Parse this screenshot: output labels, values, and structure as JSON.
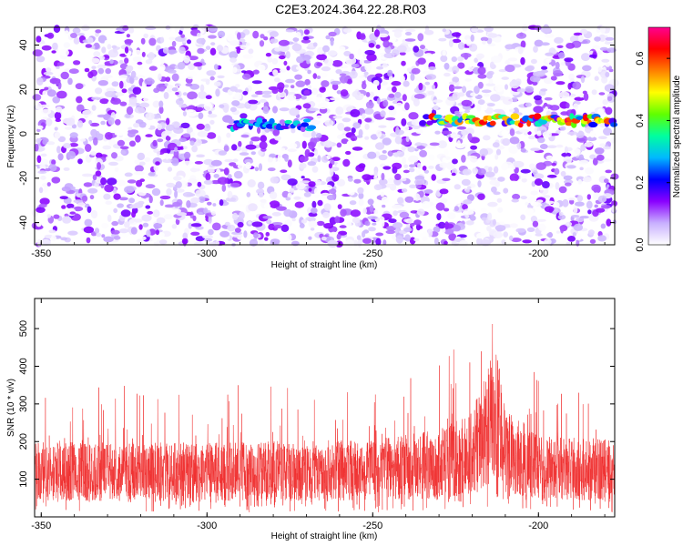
{
  "title": "C2E3.2024.364.22.28.R03",
  "chart_data": [
    {
      "type": "heatmap",
      "xlabel": "Height of straight line (km)",
      "ylabel": "Frequency (Hz)",
      "xlim": [
        -352,
        -177
      ],
      "ylim": [
        -50,
        48
      ],
      "x_ticks": [
        -350,
        -300,
        -250,
        -200
      ],
      "y_ticks": [
        -40,
        -20,
        0,
        20,
        40
      ],
      "colorbar": {
        "label": "Normalized spectral amplitude",
        "range": [
          0.0,
          0.7
        ],
        "ticks": [
          0.0,
          0.2,
          0.4,
          0.6
        ],
        "tick_labels": [
          "0.0",
          "0.2",
          "0.4",
          "0.6"
        ],
        "colors": [
          "#ffffff",
          "#c8b0ff",
          "#8a00ff",
          "#0000ff",
          "#00b8ff",
          "#00ffa0",
          "#60ff00",
          "#ffff00",
          "#ff8000",
          "#ff0000",
          "#ff0090"
        ]
      },
      "features": [
        {
          "x_start": -293,
          "x_end": -268,
          "frequency": 4,
          "peak_amplitude": 0.35
        },
        {
          "x_start": -235,
          "x_end": -177,
          "frequency": 6,
          "peak_amplitude": 0.68
        }
      ]
    },
    {
      "type": "line",
      "xlabel": "Height of straight line (km)",
      "ylabel": "SNR (10 * v/v)",
      "xlim": [
        -352,
        -177
      ],
      "ylim": [
        0,
        580
      ],
      "x_ticks": [
        -350,
        -300,
        -250,
        -200
      ],
      "y_ticks": [
        100,
        200,
        300,
        400,
        500
      ],
      "color": "#f03030",
      "envelope": [
        {
          "x": -352,
          "y": 120
        },
        {
          "x": -300,
          "y": 120
        },
        {
          "x": -250,
          "y": 125
        },
        {
          "x": -230,
          "y": 140
        },
        {
          "x": -220,
          "y": 170
        },
        {
          "x": -215,
          "y": 250
        },
        {
          "x": -212,
          "y": 270
        },
        {
          "x": -210,
          "y": 180
        },
        {
          "x": -200,
          "y": 130
        },
        {
          "x": -177,
          "y": 125
        }
      ]
    }
  ]
}
